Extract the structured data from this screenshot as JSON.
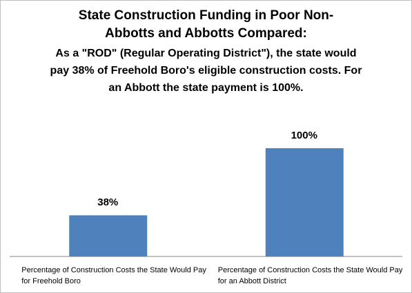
{
  "chart_data": {
    "type": "bar",
    "title": "State Construction Funding in Poor Non-Abbotts and Abbotts Compared:",
    "subtitle": "As a \"ROD\" (Regular Operating District\"), the state would pay 38% of Freehold Boro's eligible construction costs. For an Abbott the state payment is 100%.",
    "categories": [
      "Percentage of Construction Costs the State Would Pay for Freehold Boro",
      "Percentage of Construction Costs the State Would Pay for an Abbott District"
    ],
    "values": [
      38,
      100
    ],
    "value_labels": [
      "38%",
      "100%"
    ],
    "color": "#4f81bd"
  }
}
